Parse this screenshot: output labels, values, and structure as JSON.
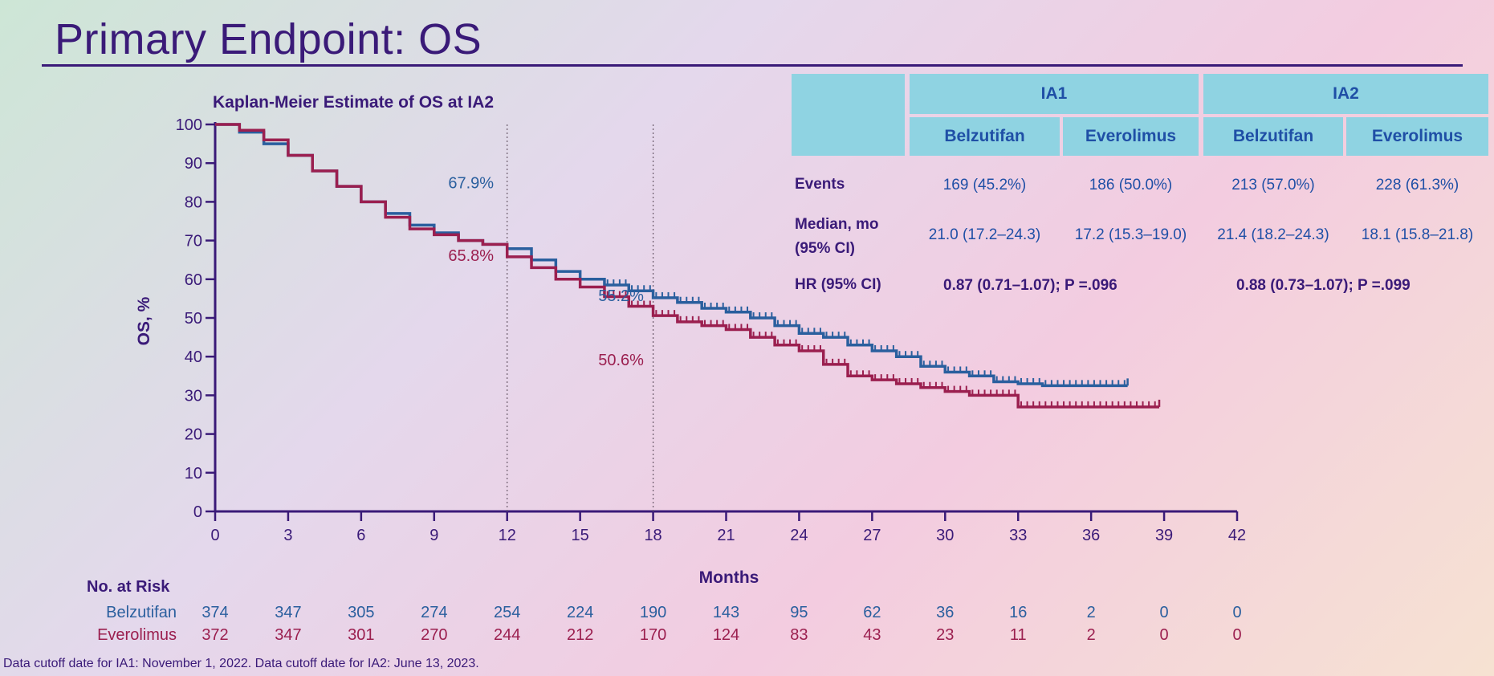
{
  "page": {
    "title": "Primary Endpoint: OS"
  },
  "chart_data": {
    "type": "line",
    "title": "Kaplan-Meier Estimate of OS at IA2",
    "xlabel": "Months",
    "ylabel": "OS, %",
    "xlim": [
      0,
      42
    ],
    "ylim": [
      0,
      100
    ],
    "xticks": [
      0,
      3,
      6,
      9,
      12,
      15,
      18,
      21,
      24,
      27,
      30,
      33,
      36,
      39,
      42
    ],
    "yticks": [
      0,
      10,
      20,
      30,
      40,
      50,
      60,
      70,
      80,
      90,
      100
    ],
    "reference_lines_x": [
      12,
      18
    ],
    "series": [
      {
        "name": "Belzutifan",
        "color": "#2a5f9e",
        "x": [
          0,
          1,
          2,
          3,
          4,
          5,
          6,
          7,
          8,
          9,
          10,
          11,
          12,
          13,
          14,
          15,
          16,
          17,
          18,
          19,
          20,
          21,
          22,
          23,
          24,
          25,
          26,
          27,
          28,
          29,
          30,
          31,
          32,
          33,
          34,
          35,
          36,
          37,
          37.5
        ],
        "y": [
          100,
          98,
          95,
          92,
          88,
          84,
          80,
          77,
          74,
          72,
          70,
          69,
          67.9,
          65,
          62,
          60,
          58.5,
          57,
          55.2,
          54,
          52.5,
          51.5,
          50,
          48,
          46,
          45,
          43,
          41.5,
          40,
          37.5,
          36,
          35,
          33.5,
          33,
          32.5,
          32.5,
          32.5,
          32.5,
          32.5
        ]
      },
      {
        "name": "Everolimus",
        "color": "#9b1f4f",
        "x": [
          0,
          1,
          2,
          3,
          4,
          5,
          6,
          7,
          8,
          9,
          10,
          11,
          12,
          13,
          14,
          15,
          16,
          17,
          18,
          19,
          20,
          21,
          22,
          23,
          24,
          25,
          26,
          27,
          28,
          29,
          30,
          31,
          32,
          33,
          34,
          35,
          36,
          37,
          38,
          38.8
        ],
        "y": [
          100,
          98.5,
          96,
          92,
          88,
          84,
          80,
          76,
          73,
          71.5,
          70,
          69,
          65.8,
          63,
          60,
          58,
          55.5,
          53,
          50.6,
          49,
          48,
          47,
          45,
          43,
          41.5,
          38,
          35,
          34,
          33,
          32,
          31,
          30,
          30,
          27,
          27,
          27,
          27,
          27,
          27,
          27
        ]
      }
    ],
    "annotations": [
      {
        "text": "67.9%",
        "x": 12,
        "y": 67.9,
        "series": "Belzutifan"
      },
      {
        "text": "65.8%",
        "x": 12,
        "y": 65.8,
        "series": "Everolimus"
      },
      {
        "text": "55.2%",
        "x": 18,
        "y": 55.2,
        "series": "Belzutifan"
      },
      {
        "text": "50.6%",
        "x": 18,
        "y": 50.6,
        "series": "Everolimus"
      }
    ],
    "risk_table": {
      "title": "No. at Risk",
      "rows": [
        {
          "label": "Belzutifan",
          "values": [
            374,
            347,
            305,
            274,
            254,
            224,
            190,
            143,
            95,
            62,
            36,
            16,
            2,
            0,
            0
          ]
        },
        {
          "label": "Everolimus",
          "values": [
            372,
            347,
            301,
            270,
            244,
            212,
            170,
            124,
            83,
            43,
            23,
            11,
            2,
            0,
            0
          ]
        }
      ]
    }
  },
  "results_table": {
    "groups": [
      "IA1",
      "IA2"
    ],
    "arms": [
      "Belzutifan",
      "Everolimus",
      "Belzutifan",
      "Everolimus"
    ],
    "rows": {
      "events": {
        "label": "Events",
        "values": [
          "169 (45.2%)",
          "186 (50.0%)",
          "213 (57.0%)",
          "228 (61.3%)"
        ]
      },
      "median": {
        "label_line1": "Median, mo",
        "label_line2": "(95% CI)",
        "values": [
          "21.0 (17.2–24.3)",
          "17.2 (15.3–19.0)",
          "21.4 (18.2–24.3)",
          "18.1 (15.8–21.8)"
        ]
      },
      "hr": {
        "label": "HR (95% CI)",
        "ia1": "0.87 (0.71–1.07); P =.096",
        "ia2": "0.88 (0.73–1.07); P =.099"
      }
    }
  },
  "footnote": "Data cutoff date for IA1: November 1, 2022. Data cutoff date for IA2: June 13, 2023."
}
